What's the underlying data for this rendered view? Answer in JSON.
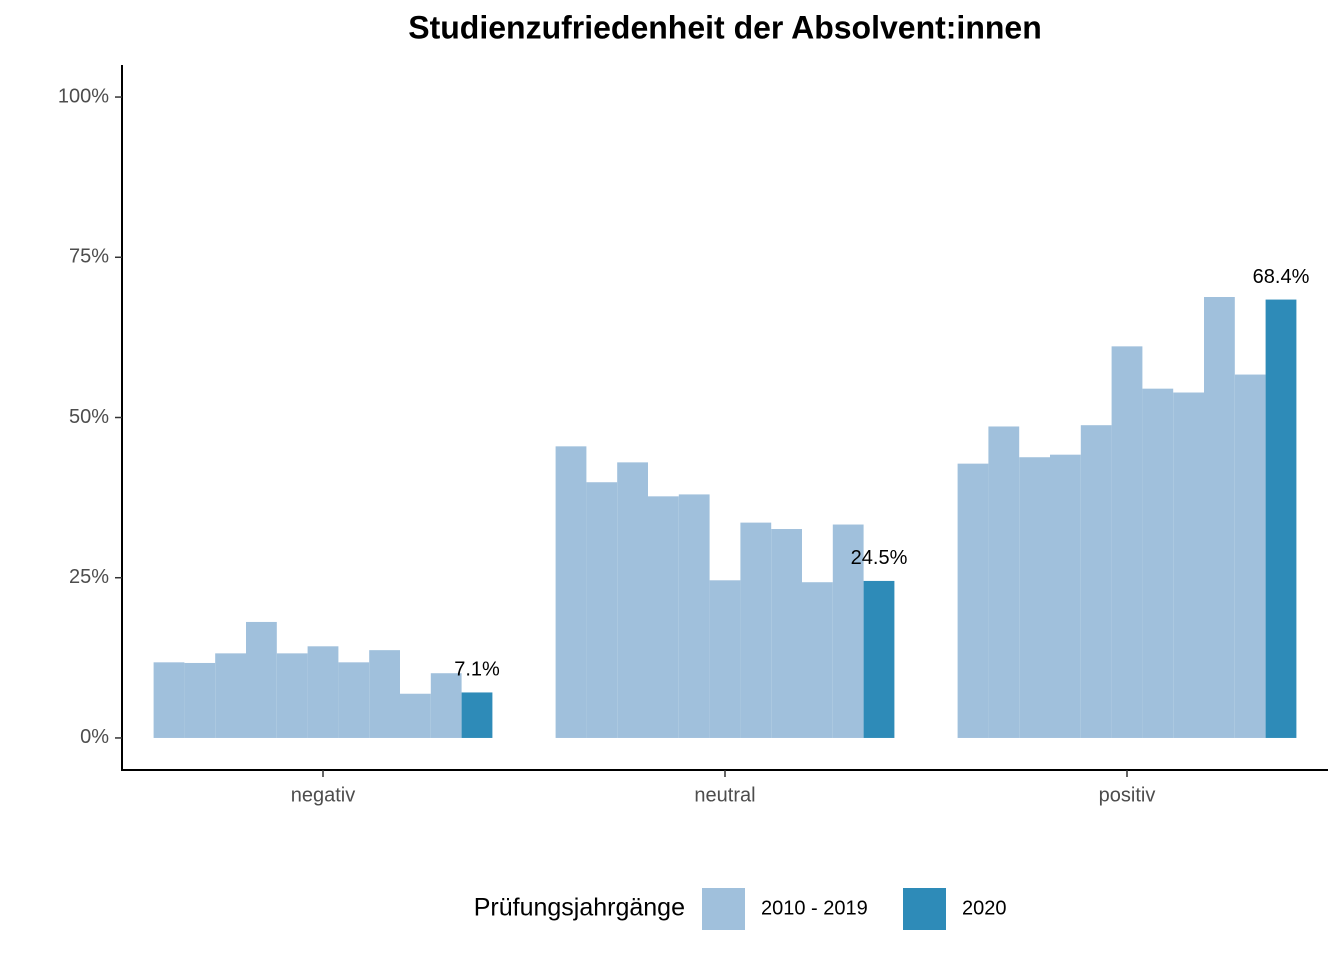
{
  "chart_data": {
    "type": "bar",
    "title": "Studienzufriedenheit der Absolvent:innen",
    "categories": [
      "negativ",
      "neutral",
      "positiv"
    ],
    "series": [
      {
        "name": "2010 - 2019",
        "color": "#a0c0dc",
        "values": [
          [
            11.8,
            11.7,
            13.2,
            18.1,
            13.2,
            14.3,
            11.8,
            13.7,
            6.9,
            10.1
          ],
          [
            45.5,
            39.9,
            43.0,
            37.7,
            38.0,
            24.6,
            33.6,
            32.6,
            24.3,
            33.3
          ],
          [
            42.8,
            48.6,
            43.8,
            44.2,
            48.8,
            61.1,
            54.5,
            53.9,
            68.8,
            56.7
          ]
        ]
      },
      {
        "name": "2020",
        "color": "#2e8bb8",
        "values": [
          7.1,
          24.5,
          68.4
        ],
        "value_labels": [
          "7.1%",
          "24.5%",
          "68.4%"
        ]
      }
    ],
    "ylim": [
      -5,
      105
    ],
    "yticks": [
      {
        "value": 0,
        "label": "0%"
      },
      {
        "value": 25,
        "label": "25%"
      },
      {
        "value": 50,
        "label": "50%"
      },
      {
        "value": 75,
        "label": "75%"
      },
      {
        "value": 100,
        "label": "100%"
      }
    ],
    "legend_title": "Prüfungsjahrgänge",
    "legend_position": "bottom",
    "grid": false
  }
}
